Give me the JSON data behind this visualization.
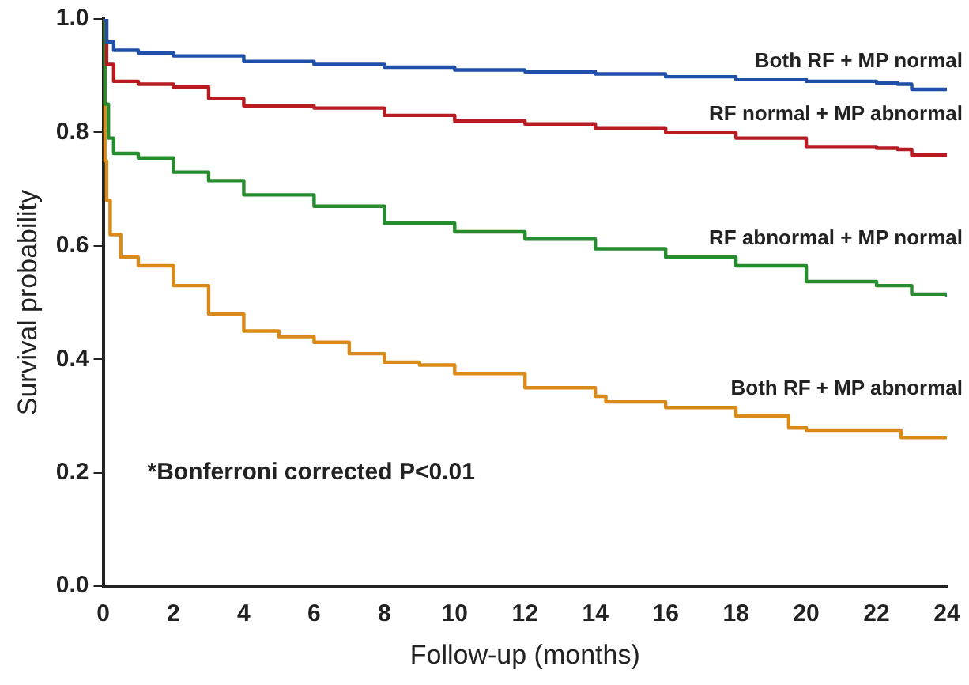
{
  "chart_data": {
    "type": "step",
    "xlabel": "Follow-up (months)",
    "ylabel": "Survival probability",
    "annotations": [
      "*Bonferroni corrected P<0.01"
    ],
    "xlim": [
      0,
      24
    ],
    "xticks": [
      0,
      2,
      4,
      6,
      8,
      10,
      12,
      14,
      16,
      18,
      20,
      22,
      24
    ],
    "ylim": [
      0,
      1
    ],
    "yticks": [
      {
        "value": 0,
        "label": "0.0"
      },
      {
        "value": 0.2,
        "label": "0.2"
      },
      {
        "value": 0.4,
        "label": "0.4"
      },
      {
        "value": 0.6,
        "label": "0.6"
      },
      {
        "value": 0.8,
        "label": "0.8"
      },
      {
        "value": 1,
        "label": "1.0"
      }
    ],
    "grid": false,
    "legend": false,
    "marker": "none",
    "line_style": "solid",
    "series": [
      {
        "name": "Both RF + MP normal",
        "color": "#1f4fa8",
        "x": [
          0,
          0.1,
          0.3,
          1,
          2,
          4,
          6,
          8,
          10,
          12,
          14,
          16,
          18,
          20,
          22,
          22.6,
          23,
          24
        ],
        "values": [
          1,
          0.96,
          0.945,
          0.94,
          0.935,
          0.925,
          0.92,
          0.915,
          0.91,
          0.907,
          0.903,
          0.898,
          0.893,
          0.89,
          0.887,
          0.885,
          0.876,
          0.876
        ]
      },
      {
        "name": "RF normal + MP abnormal",
        "color": "#b81c22",
        "x": [
          0,
          0.1,
          0.3,
          1,
          2,
          3,
          4,
          6,
          8,
          10,
          12,
          14,
          16,
          18,
          20,
          22,
          22.6,
          23,
          24
        ],
        "values": [
          1,
          0.92,
          0.89,
          0.885,
          0.88,
          0.86,
          0.847,
          0.843,
          0.83,
          0.82,
          0.815,
          0.808,
          0.8,
          0.79,
          0.775,
          0.772,
          0.77,
          0.76,
          0.762
        ]
      },
      {
        "name": "RF abnormal + MP normal",
        "color": "#268c2e",
        "x": [
          0,
          0.05,
          0.15,
          0.3,
          1,
          2,
          3,
          4,
          6,
          8,
          10,
          12,
          14,
          16,
          18,
          20,
          22,
          22.7,
          23,
          24
        ],
        "values": [
          1,
          0.85,
          0.79,
          0.763,
          0.755,
          0.73,
          0.715,
          0.69,
          0.67,
          0.64,
          0.625,
          0.612,
          0.595,
          0.58,
          0.565,
          0.537,
          0.53,
          0.53,
          0.515,
          0.51
        ]
      },
      {
        "name": "Both RF + MP abnormal",
        "color": "#d98a1a",
        "x": [
          0,
          0.05,
          0.1,
          0.2,
          0.5,
          1,
          2,
          3,
          4,
          5,
          6,
          7,
          8,
          9,
          10,
          12,
          14,
          14.3,
          16,
          18,
          19.5,
          20,
          22.6,
          22.7,
          24
        ],
        "values": [
          1,
          0.75,
          0.68,
          0.62,
          0.58,
          0.565,
          0.53,
          0.48,
          0.45,
          0.44,
          0.43,
          0.41,
          0.395,
          0.39,
          0.375,
          0.35,
          0.335,
          0.325,
          0.315,
          0.3,
          0.28,
          0.275,
          0.275,
          0.262,
          0.26
        ]
      }
    ]
  }
}
